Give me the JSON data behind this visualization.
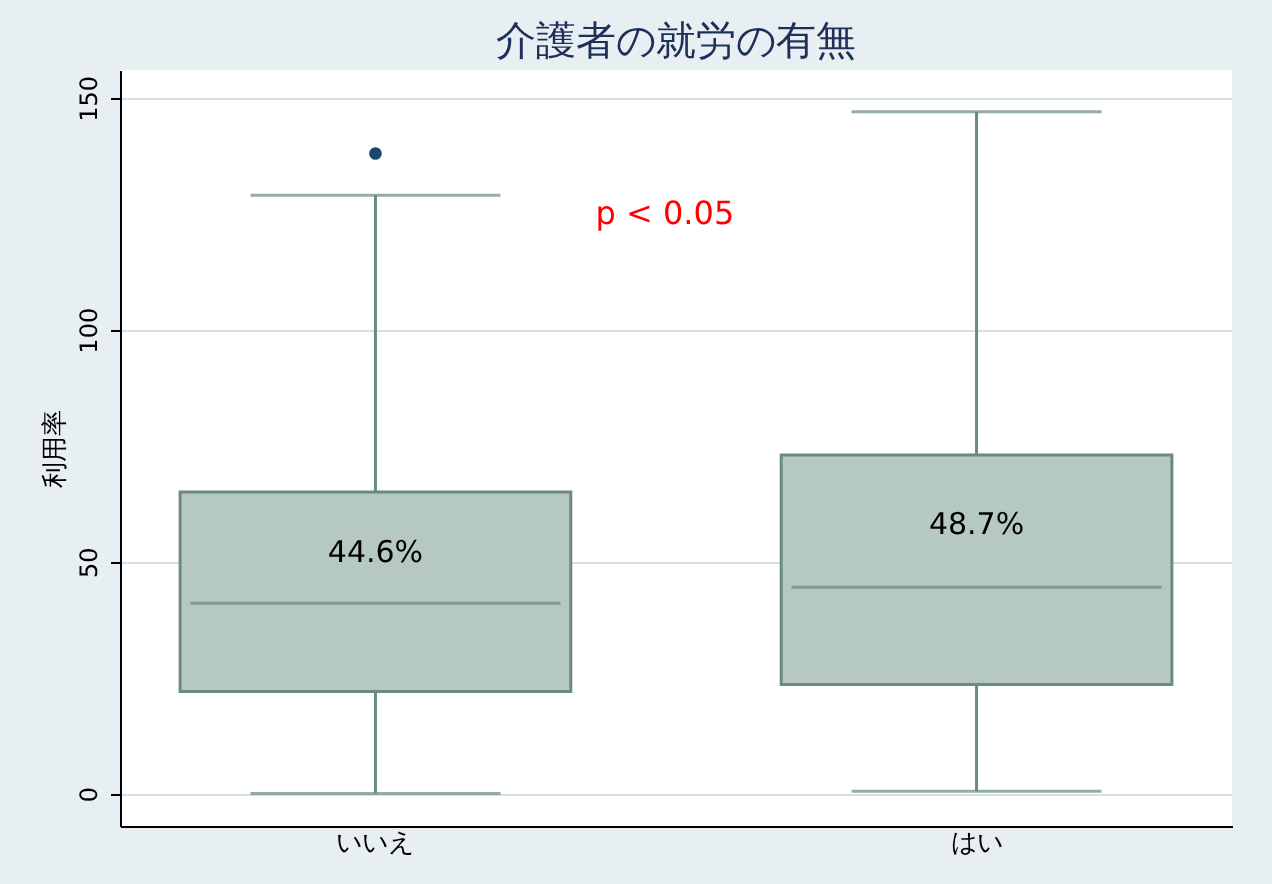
{
  "chart_data": {
    "type": "box",
    "title": "介護者の就労の有無",
    "ylabel": "利用率",
    "categories": [
      "いいえ",
      "はい"
    ],
    "boxes": [
      {
        "low": 0,
        "q1": 22,
        "median": 41,
        "q3": 65,
        "high": 129,
        "outliers": [
          138
        ]
      },
      {
        "low": 0.5,
        "q1": 23.5,
        "median": 44.5,
        "q3": 73,
        "high": 147
      }
    ],
    "color": "#b5c8c2",
    "ylim": [
      -7,
      156
    ],
    "yticks": [
      0,
      50,
      100,
      150
    ],
    "grid": "y",
    "annotations": [
      "44.6%",
      "48.7%",
      "p < 0.05"
    ]
  }
}
